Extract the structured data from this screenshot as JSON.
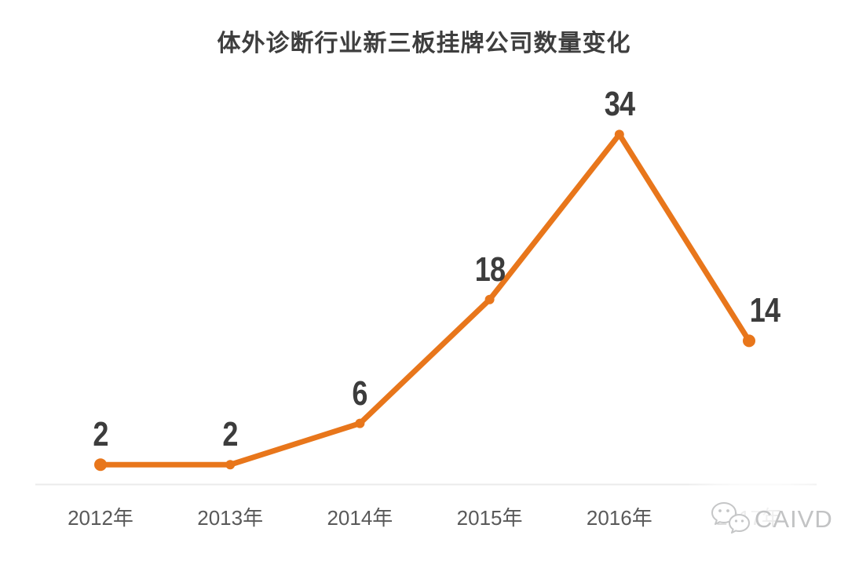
{
  "chart_data": {
    "type": "line",
    "title": "体外诊断行业新三板挂牌公司数量变化",
    "categories": [
      "2012年",
      "2013年",
      "2014年",
      "2015年",
      "2016年",
      "2017年"
    ],
    "values": [
      2,
      2,
      6,
      18,
      34,
      14
    ],
    "data_labels": [
      2,
      2,
      6,
      18,
      34,
      14
    ],
    "xlabel": "",
    "ylabel": "",
    "ylim": [
      0,
      42
    ],
    "grid": false,
    "legend": false,
    "marker": "circle",
    "colors": {
      "line": "#E8761B",
      "value_label": "#3C3C3C",
      "axis_label": "#595959",
      "axis_line": "#EBEBEB",
      "background": "#FFFFFF"
    }
  },
  "watermark": {
    "brand_text": "CAIVD",
    "icon": "wechat-icon",
    "color": "#C2C3C4"
  }
}
